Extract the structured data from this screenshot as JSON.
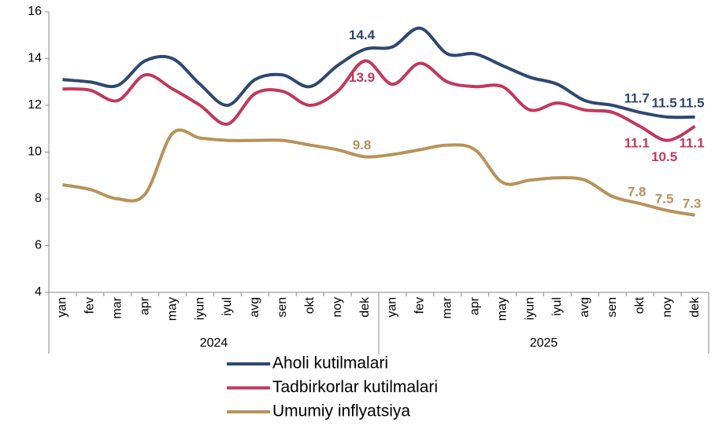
{
  "chart_data": {
    "type": "line",
    "categories": [
      "yan",
      "fev",
      "mar",
      "apr",
      "may",
      "iyun",
      "iyul",
      "avg",
      "sen",
      "okt",
      "noy",
      "dek",
      "yan",
      "fev",
      "mar",
      "apr",
      "may",
      "iyun",
      "iyul",
      "avg",
      "sen",
      "okt",
      "noy",
      "dek"
    ],
    "category_groups": [
      "2024",
      "2025"
    ],
    "series": [
      {
        "name": "Aholi kutilmalari",
        "color": "#2e4870",
        "labeled_points": [
          11,
          21,
          22,
          23
        ],
        "values": [
          13.1,
          13.0,
          12.85,
          13.9,
          14.0,
          12.9,
          12.0,
          13.1,
          13.3,
          12.8,
          13.7,
          14.4,
          14.5,
          15.3,
          14.2,
          14.2,
          13.7,
          13.2,
          12.9,
          12.2,
          12.0,
          11.7,
          11.5,
          11.5
        ]
      },
      {
        "name": "Tadbirkorlar kutilmalari",
        "color": "#c2385c",
        "labeled_points": [
          11,
          21,
          22,
          23
        ],
        "values": [
          12.7,
          12.65,
          12.2,
          13.3,
          12.7,
          12.0,
          11.2,
          12.5,
          12.6,
          12.0,
          12.6,
          13.9,
          12.9,
          13.8,
          13.0,
          12.8,
          12.8,
          11.8,
          12.1,
          11.8,
          11.7,
          11.1,
          10.5,
          11.1
        ]
      },
      {
        "name": "Umumiy inflyatsiya",
        "color": "#b8925a",
        "labeled_points": [
          11,
          21,
          22,
          23
        ],
        "values": [
          8.6,
          8.4,
          8.0,
          8.2,
          10.8,
          10.6,
          10.5,
          10.5,
          10.5,
          10.3,
          10.1,
          9.8,
          9.9,
          10.1,
          10.3,
          10.1,
          8.7,
          8.8,
          8.9,
          8.8,
          8.1,
          7.8,
          7.5,
          7.3
        ]
      }
    ],
    "ylim": [
      4,
      16
    ],
    "yticks": [
      4,
      6,
      8,
      10,
      12,
      14,
      16
    ],
    "grid": false,
    "legend": "bottom"
  }
}
